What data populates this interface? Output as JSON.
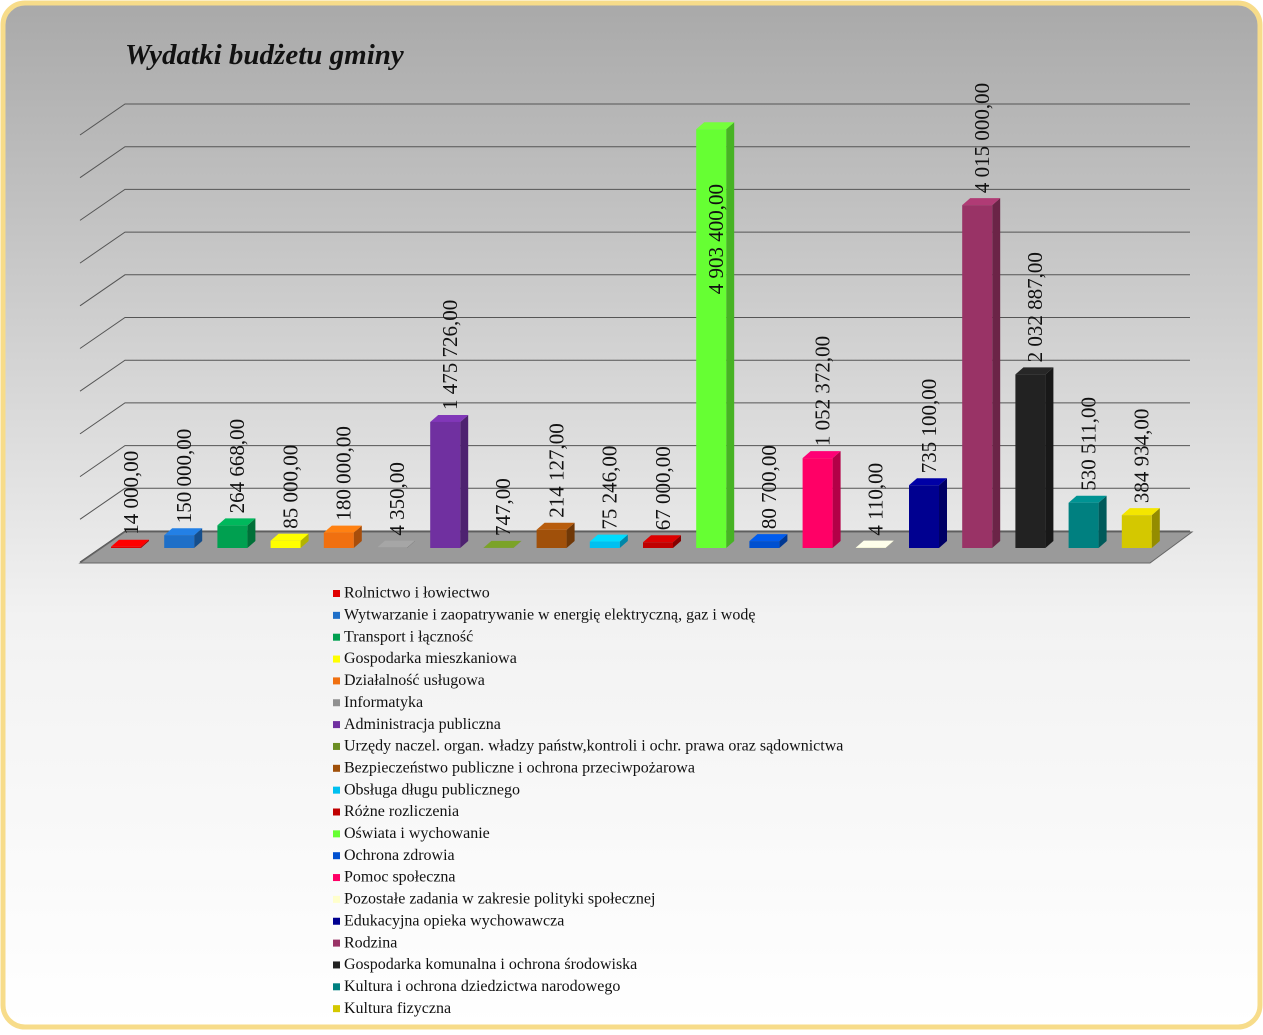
{
  "chart_data": {
    "type": "bar",
    "title": "Wydatki budżetu gminy",
    "categories": [
      "Rolnictwo i łowiectwo",
      "Wytwarzanie i zaopatrywanie w energię elektryczną, gaz i wodę",
      "Transport i łączność",
      "Gospodarka mieszkaniowa",
      "Działalność usługowa",
      "Informatyka",
      "Administracja publiczna",
      "Urzędy naczel. organ. władzy państw,kontroli i ochr. prawa oraz sądownictwa",
      "Bezpieczeństwo publiczne i ochrona przeciwpożarowa",
      "Obsługa długu publicznego",
      "Różne rozliczenia",
      "Oświata i wychowanie",
      "Ochrona zdrowia",
      "Pomoc społeczna",
      "Pozostałe zadania w zakresie polityki społecznej",
      "Edukacyjna opieka wychowawcza",
      "Rodzina",
      "Gospodarka komunalna i ochrona środowiska",
      "Kultura i ochrona dziedzictwa narodowego",
      "Kultura fizyczna"
    ],
    "values": [
      14000,
      150000,
      264668,
      85000,
      180000,
      4350,
      1475726,
      747,
      214127,
      75246,
      67000,
      4903400,
      80700,
      1052372,
      4110,
      735100,
      4015000,
      2032887,
      530511,
      384934
    ],
    "value_labels": [
      "14 000,00",
      "150 000,00",
      "264 668,00",
      "85 000,00",
      "180 000,00",
      "4 350,00",
      "1 475 726,00",
      "747,00",
      "214 127,00",
      "75 246,00",
      "67 000,00",
      "4 903 400,00",
      "80 700,00",
      "1 052 372,00",
      "4 110,00",
      "735 100,00",
      "4 015 000,00",
      "2 032 887,00",
      "530 511,00",
      "384 934,00"
    ],
    "colors": [
      "#e00000",
      "#1e6fc8",
      "#00a050",
      "#ffff00",
      "#f07010",
      "#909090",
      "#7030a0",
      "#6b8e23",
      "#a0500a",
      "#00c0f0",
      "#c00000",
      "#66ff33",
      "#0050d0",
      "#ff0066",
      "#ffffcc",
      "#000090",
      "#993366",
      "#222222",
      "#008080",
      "#d4c800"
    ],
    "ylim": [
      0,
      5000000
    ],
    "yticks": [
      0,
      500000,
      1000000,
      1500000,
      2000000,
      2500000,
      3000000,
      3500000,
      4000000,
      4500000,
      5000000
    ],
    "grid": true
  }
}
